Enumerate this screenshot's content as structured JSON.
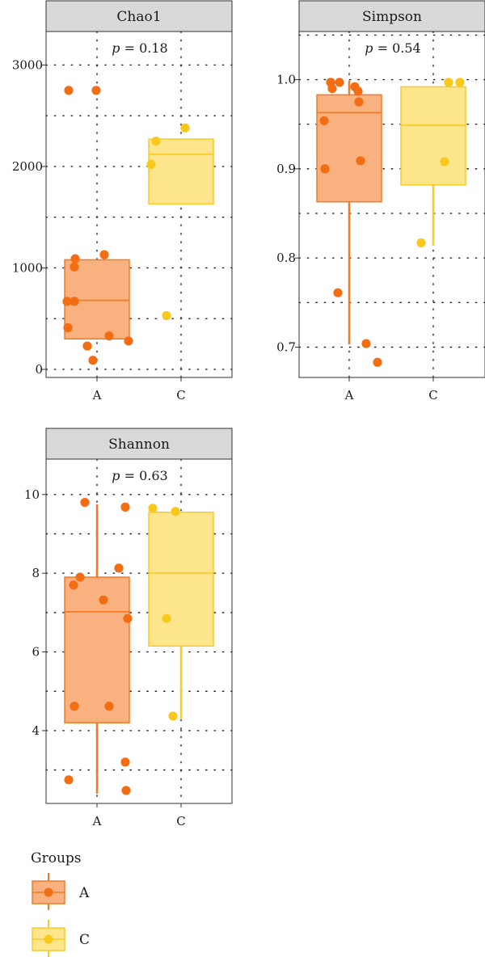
{
  "colors": {
    "A": {
      "fill": "#f9b27f",
      "stroke": "#f37a24",
      "point": "#f26d14"
    },
    "C": {
      "fill": "#fde58c",
      "stroke": "#f7cb2c",
      "point": "#f8c91a"
    }
  },
  "chart_data": [
    {
      "type": "box",
      "title": "Chao1",
      "annotation_prefix": "p",
      "annotation_value": "= 0.18",
      "categories": [
        "A",
        "C"
      ],
      "ylim": [
        -80,
        3330
      ],
      "yticks": [
        0,
        1000,
        2000,
        3000
      ],
      "ytick_labels": [
        "0",
        "1000",
        "2000",
        "3000"
      ],
      "grid": true,
      "boxes": [
        {
          "group": "A",
          "q1": 300,
          "median": 680,
          "q3": 1080,
          "whisker_low": 300,
          "whisker_high": 1080
        },
        {
          "group": "C",
          "q1": 1630,
          "median": 2120,
          "q3": 2270,
          "whisker_low": 1630,
          "whisker_high": 2270
        }
      ],
      "points": {
        "A": [
          [
            -0.35,
            2750
          ],
          [
            -0.01,
            2750
          ],
          [
            -0.27,
            1090
          ],
          [
            0.09,
            1130
          ],
          [
            -0.28,
            1010
          ],
          [
            -0.37,
            670
          ],
          [
            -0.28,
            670
          ],
          [
            -0.36,
            410
          ],
          [
            0.15,
            330
          ],
          [
            -0.12,
            230
          ],
          [
            0.39,
            280
          ],
          [
            -0.05,
            90
          ]
        ],
        "C": [
          [
            -0.37,
            2020
          ],
          [
            -0.31,
            2250
          ],
          [
            0.05,
            2380
          ],
          [
            -0.18,
            530
          ]
        ]
      }
    },
    {
      "type": "box",
      "title": "Simpson",
      "annotation_prefix": "p",
      "annotation_value": "= 0.54",
      "categories": [
        "A",
        "C"
      ],
      "ylim": [
        0.666,
        1.054
      ],
      "yticks": [
        0.7,
        0.8,
        0.9,
        1.0
      ],
      "ytick_labels": [
        "0.7",
        "0.8",
        "0.9",
        "1.0"
      ],
      "grid": true,
      "boxes": [
        {
          "group": "A",
          "q1": 0.863,
          "median": 0.963,
          "q3": 0.983,
          "whisker_low": 0.703,
          "whisker_high": 0.999
        },
        {
          "group": "C",
          "q1": 0.882,
          "median": 0.949,
          "q3": 0.992,
          "whisker_low": 0.814,
          "whisker_high": 0.992
        }
      ],
      "points": {
        "A": [
          [
            -0.23,
            0.997
          ],
          [
            -0.12,
            0.997
          ],
          [
            -0.21,
            0.99
          ],
          [
            0.07,
            0.992
          ],
          [
            0.11,
            0.987
          ],
          [
            0.12,
            0.975
          ],
          [
            -0.31,
            0.954
          ],
          [
            0.14,
            0.909
          ],
          [
            -0.3,
            0.9
          ],
          [
            -0.14,
            0.761
          ],
          [
            0.21,
            0.704
          ],
          [
            0.35,
            0.683
          ]
        ],
        "C": [
          [
            0.19,
            0.997
          ],
          [
            0.33,
            0.997
          ],
          [
            0.14,
            0.908
          ],
          [
            -0.15,
            0.817
          ]
        ]
      }
    },
    {
      "type": "box",
      "title": "Shannon",
      "annotation_prefix": "p",
      "annotation_value": "= 0.63",
      "categories": [
        "A",
        "C"
      ],
      "ylim": [
        2.15,
        10.9
      ],
      "yticks": [
        4,
        6,
        8,
        10
      ],
      "ytick_labels": [
        "4",
        "6",
        "8",
        "10"
      ],
      "grid": true,
      "boxes": [
        {
          "group": "A",
          "q1": 4.2,
          "median": 7.02,
          "q3": 7.9,
          "whisker_low": 2.4,
          "whisker_high": 9.75
        },
        {
          "group": "C",
          "q1": 6.15,
          "median": 8.0,
          "q3": 9.55,
          "whisker_low": 4.3,
          "whisker_high": 9.55
        }
      ],
      "points": {
        "A": [
          [
            -0.15,
            9.8
          ],
          [
            0.35,
            9.68
          ],
          [
            0.27,
            8.13
          ],
          [
            -0.21,
            7.9
          ],
          [
            -0.29,
            7.7
          ],
          [
            0.08,
            7.32
          ],
          [
            0.38,
            6.85
          ],
          [
            -0.28,
            4.62
          ],
          [
            0.15,
            4.62
          ],
          [
            -0.35,
            2.75
          ],
          [
            0.35,
            3.2
          ],
          [
            0.36,
            2.48
          ]
        ],
        "C": [
          [
            -0.35,
            9.65
          ],
          [
            -0.07,
            9.57
          ],
          [
            -0.18,
            6.85
          ],
          [
            -0.1,
            4.37
          ]
        ]
      }
    }
  ],
  "legend": {
    "title": "Groups",
    "items": [
      "A",
      "C"
    ],
    "position": "bottom-left"
  }
}
